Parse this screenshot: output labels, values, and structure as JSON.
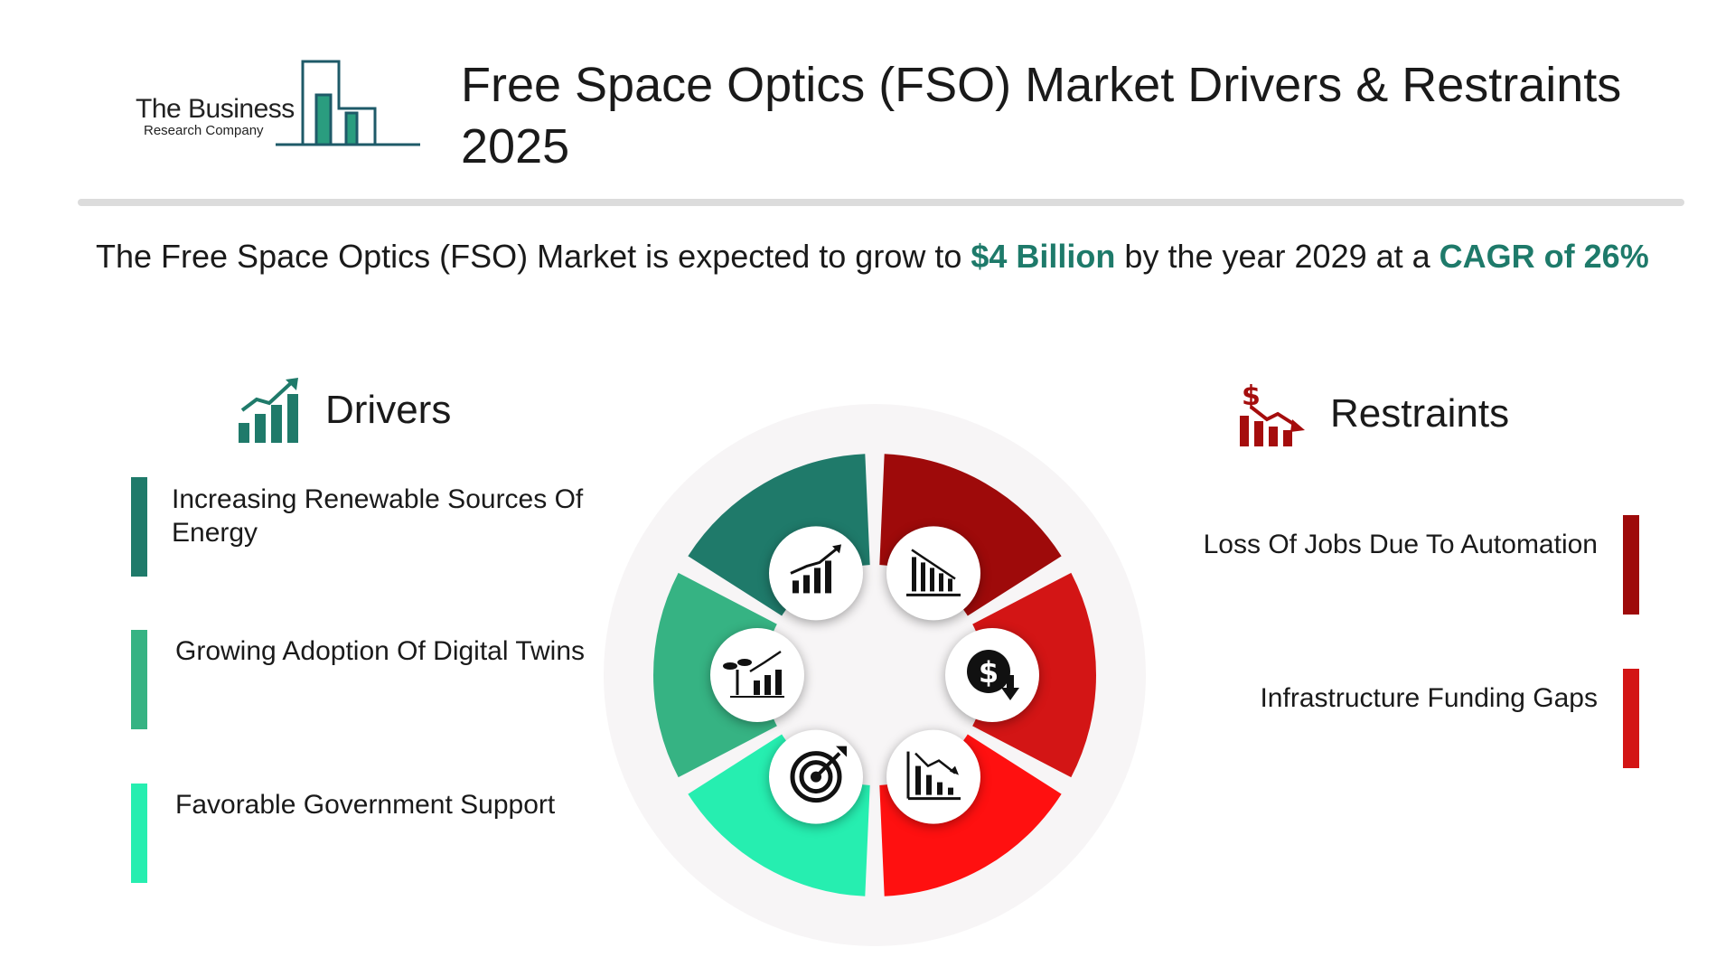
{
  "logo": {
    "line1": "The Business",
    "line2": "Research Company"
  },
  "title": "Free Space Optics (FSO) Market Drivers & Restraints 2025",
  "summary": {
    "prefix": "The  Free Space Optics (FSO) Market  is expected to grow to ",
    "value": "$4 Billion",
    "middle": " by the year 2029 at a ",
    "cagr": "CAGR of  26%"
  },
  "drivers": {
    "heading": "Drivers",
    "items": [
      {
        "label": "Increasing Renewable Sources Of Energy",
        "color": "#1f7a6a"
      },
      {
        "label": "Growing Adoption Of Digital Twins",
        "color": "#36b383"
      },
      {
        "label": "Favorable Government Support",
        "color": "#26eeb0"
      }
    ]
  },
  "restraints": {
    "heading": "Restraints",
    "items": [
      {
        "label": "Loss Of Jobs Due To Automation",
        "color": "#9e0a0a"
      },
      {
        "label": "Infrastructure Funding Gaps",
        "color": "#d31515"
      }
    ]
  },
  "wheel": {
    "segments": [
      {
        "side": "driver",
        "color": "#1f7a6a",
        "icon": "growth-chart-icon"
      },
      {
        "side": "driver",
        "color": "#36b383",
        "icon": "plant-growth-chart-icon"
      },
      {
        "side": "driver",
        "color": "#26eeb0",
        "icon": "target-icon"
      },
      {
        "side": "restraint",
        "color": "#9e0a0a",
        "icon": "declining-bars-icon"
      },
      {
        "side": "restraint",
        "color": "#d31515",
        "icon": "dollar-down-icon"
      },
      {
        "side": "restraint",
        "color": "#ff1010",
        "icon": "decline-chart-icon"
      }
    ]
  },
  "colors": {
    "accent": "#1e7a6a",
    "divider": "#dcdcdc",
    "restraint_icon": "#a50d0d",
    "driver_icon": "#1f7a6a"
  }
}
